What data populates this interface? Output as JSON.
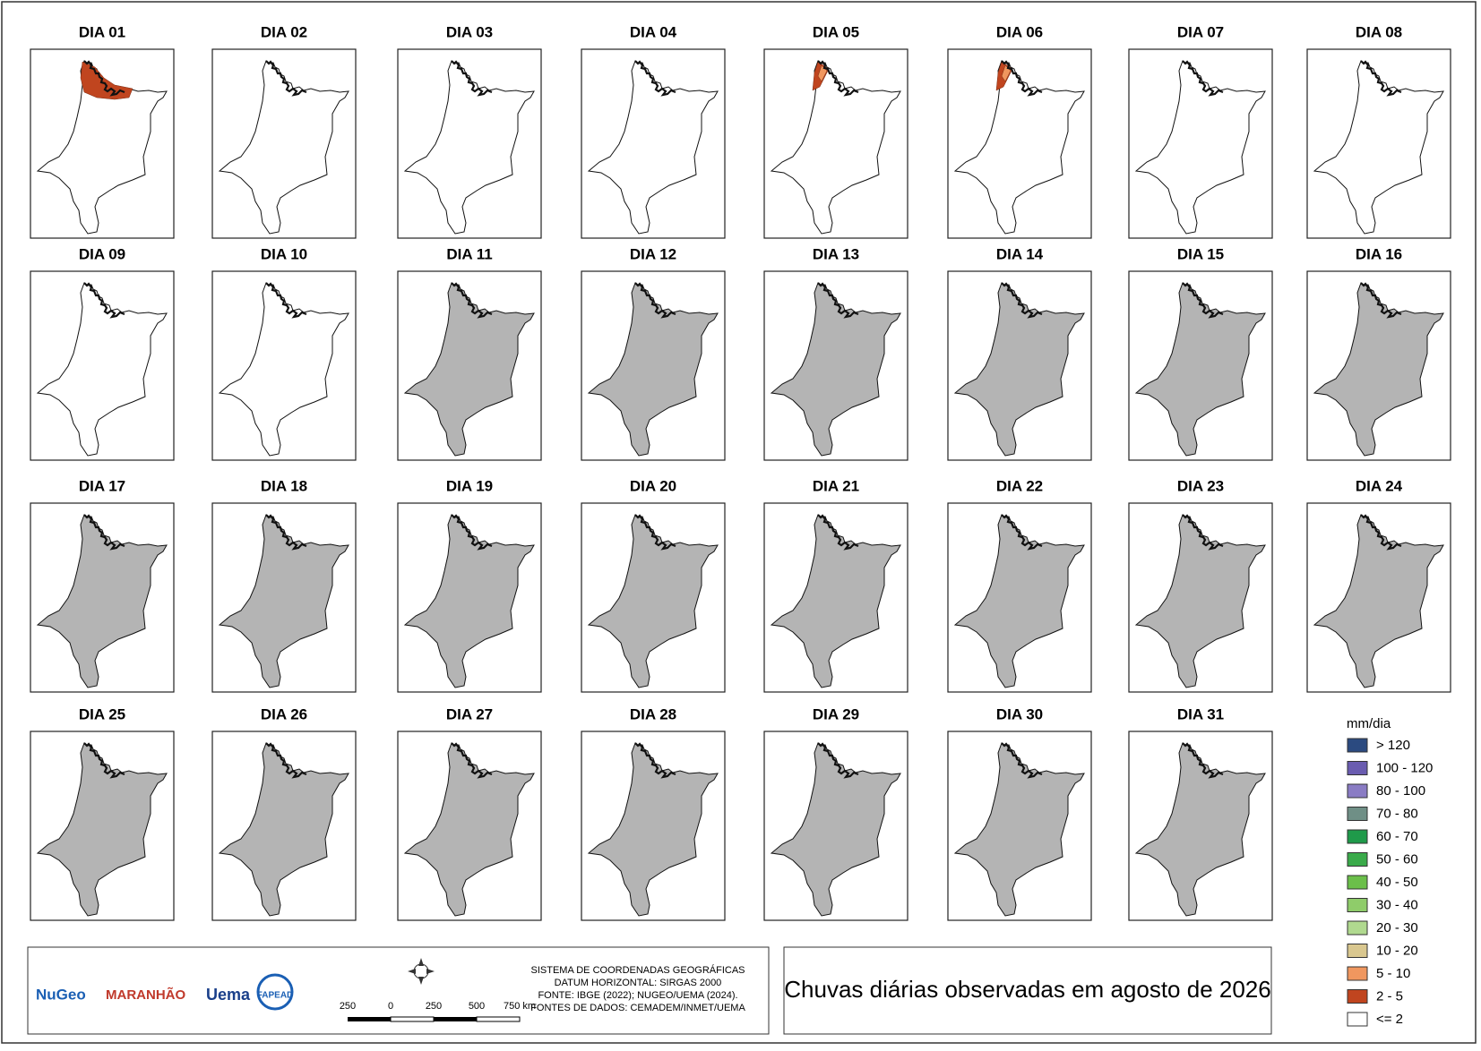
{
  "title": "Chuvas diárias observadas em agosto de 2026",
  "panels": [
    {
      "title": "DIA 01",
      "fill": "#ffffff",
      "patches": [
        "#c0451f"
      ]
    },
    {
      "title": "DIA 02",
      "fill": "#ffffff",
      "patches": []
    },
    {
      "title": "DIA 03",
      "fill": "#ffffff",
      "patches": []
    },
    {
      "title": "DIA 04",
      "fill": "#ffffff",
      "patches": []
    },
    {
      "title": "DIA 05",
      "fill": "#ffffff",
      "patches": [
        "#c0451f",
        "#f0975f"
      ]
    },
    {
      "title": "DIA 06",
      "fill": "#ffffff",
      "patches": [
        "#c0451f",
        "#f0975f"
      ]
    },
    {
      "title": "DIA 07",
      "fill": "#ffffff",
      "patches": []
    },
    {
      "title": "DIA 08",
      "fill": "#ffffff",
      "patches": []
    },
    {
      "title": "DIA 09",
      "fill": "#ffffff",
      "patches": []
    },
    {
      "title": "DIA 10",
      "fill": "#ffffff",
      "patches": []
    },
    {
      "title": "DIA 11",
      "fill": "#b4b4b4",
      "patches": []
    },
    {
      "title": "DIA 12",
      "fill": "#b4b4b4",
      "patches": []
    },
    {
      "title": "DIA 13",
      "fill": "#b4b4b4",
      "patches": []
    },
    {
      "title": "DIA 14",
      "fill": "#b4b4b4",
      "patches": []
    },
    {
      "title": "DIA 15",
      "fill": "#b4b4b4",
      "patches": []
    },
    {
      "title": "DIA 16",
      "fill": "#b4b4b4",
      "patches": []
    },
    {
      "title": "DIA 17",
      "fill": "#b4b4b4",
      "patches": []
    },
    {
      "title": "DIA 18",
      "fill": "#b4b4b4",
      "patches": []
    },
    {
      "title": "DIA 19",
      "fill": "#b4b4b4",
      "patches": []
    },
    {
      "title": "DIA 20",
      "fill": "#b4b4b4",
      "patches": []
    },
    {
      "title": "DIA 21",
      "fill": "#b4b4b4",
      "patches": []
    },
    {
      "title": "DIA 22",
      "fill": "#b4b4b4",
      "patches": []
    },
    {
      "title": "DIA 23",
      "fill": "#b4b4b4",
      "patches": []
    },
    {
      "title": "DIA 24",
      "fill": "#b4b4b4",
      "patches": []
    },
    {
      "title": "DIA 25",
      "fill": "#b4b4b4",
      "patches": []
    },
    {
      "title": "DIA 26",
      "fill": "#b4b4b4",
      "patches": []
    },
    {
      "title": "DIA 27",
      "fill": "#b4b4b4",
      "patches": []
    },
    {
      "title": "DIA 28",
      "fill": "#b4b4b4",
      "patches": []
    },
    {
      "title": "DIA 29",
      "fill": "#b4b4b4",
      "patches": []
    },
    {
      "title": "DIA 30",
      "fill": "#b4b4b4",
      "patches": []
    },
    {
      "title": "DIA 31",
      "fill": "#b4b4b4",
      "patches": []
    }
  ],
  "legend": {
    "title": "mm/dia",
    "items": [
      {
        "label": "> 120",
        "color": "#2b4a80"
      },
      {
        "label": "100 - 120",
        "color": "#6a5cb0"
      },
      {
        "label": "80 - 100",
        "color": "#8a7cc4"
      },
      {
        "label": "70 - 80",
        "color": "#6f8f86"
      },
      {
        "label": "60 - 70",
        "color": "#1f9a4a"
      },
      {
        "label": "50 - 60",
        "color": "#3aaa4a"
      },
      {
        "label": "40 - 50",
        "color": "#6bbf4a"
      },
      {
        "label": "30 - 40",
        "color": "#8fcc6a"
      },
      {
        "label": "20 - 30",
        "color": "#b0d98f"
      },
      {
        "label": "10 - 20",
        "color": "#d9c78f"
      },
      {
        "label": "5 - 10",
        "color": "#f0975f"
      },
      {
        "label": "2 - 5",
        "color": "#c0451f"
      },
      {
        "label": "<= 2",
        "color": "#ffffff"
      }
    ]
  },
  "footer": {
    "logos": [
      "NuGeo",
      "MARANHÃO",
      "Uema",
      "FAPEAD"
    ],
    "scale_labels": [
      "250",
      "0",
      "250",
      "500",
      "750 km"
    ],
    "info": [
      "SISTEMA DE COORDENADAS GEOGRÁFICAS",
      "DATUM HORIZONTAL: SIRGAS 2000",
      "FONTE: IBGE (2022); NUGEO/UEMA (2024).",
      "FONTES DE DADOS: CEMADEM/INMET/UEMA"
    ]
  }
}
